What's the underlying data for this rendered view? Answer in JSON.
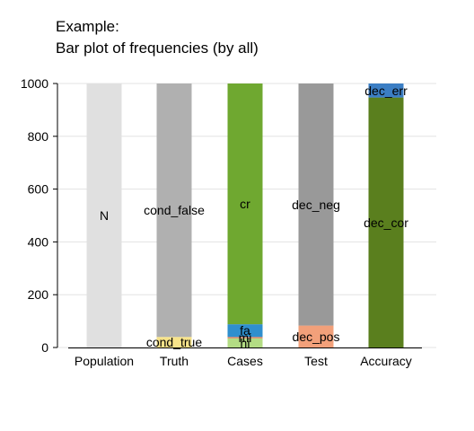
{
  "chart_data": {
    "type": "bar",
    "stacked": true,
    "title_lines": [
      "Example:",
      "Bar plot of frequencies (by all)"
    ],
    "xlabel": "",
    "ylabel": "",
    "ylim": [
      0,
      1000
    ],
    "yticks": [
      0,
      200,
      400,
      600,
      800,
      1000
    ],
    "grid": true,
    "legend": "none",
    "categories": [
      "Population",
      "Truth",
      "Cases",
      "Test",
      "Accuracy"
    ],
    "bars": [
      {
        "category": "Population",
        "segments": [
          {
            "label": "N",
            "value": 1000,
            "color": "#e0e0e0"
          }
        ]
      },
      {
        "category": "Truth",
        "segments": [
          {
            "label": "cond_true",
            "value": 40,
            "color": "#f7e38a"
          },
          {
            "label": "cond_false",
            "value": 960,
            "color": "#b0b0b0"
          }
        ]
      },
      {
        "category": "Cases",
        "segments": [
          {
            "label": "hi",
            "value": 35,
            "color": "#b3dc84"
          },
          {
            "label": "mi",
            "value": 5,
            "color": "#e07a5a"
          },
          {
            "label": "fa",
            "value": 48,
            "color": "#2f8fce"
          },
          {
            "label": "cr",
            "value": 912,
            "color": "#6fa830"
          }
        ]
      },
      {
        "category": "Test",
        "segments": [
          {
            "label": "dec_pos",
            "value": 83,
            "color": "#f2a07a"
          },
          {
            "label": "dec_neg",
            "value": 917,
            "color": "#999999"
          }
        ]
      },
      {
        "category": "Accuracy",
        "segments": [
          {
            "label": "dec_cor",
            "value": 947,
            "color": "#5a7f1e"
          },
          {
            "label": "dec_err",
            "value": 53,
            "color": "#3b7ec4"
          }
        ]
      }
    ]
  }
}
